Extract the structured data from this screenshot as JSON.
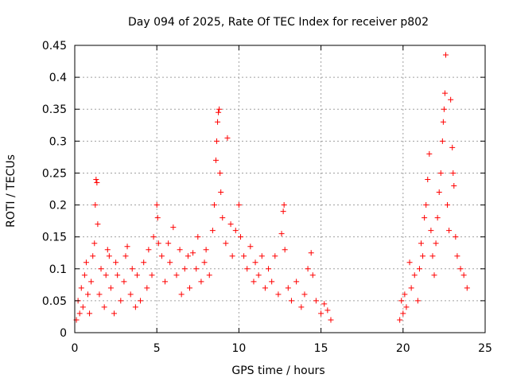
{
  "chart_data": {
    "type": "scatter",
    "title": "Day 094 of 2025, Rate Of TEC Index for receiver p802",
    "xlabel": "GPS time / hours",
    "ylabel": "ROTI / TECUs",
    "xlim": [
      0,
      25
    ],
    "ylim": [
      0,
      0.45
    ],
    "xticks": [
      0,
      5,
      10,
      15,
      20,
      25
    ],
    "xtick_labels": [
      "0",
      "5",
      "10",
      "15",
      "20",
      "25"
    ],
    "yticks": [
      0,
      0.05,
      0.1,
      0.15,
      0.2,
      0.25,
      0.3,
      0.35,
      0.4,
      0.45
    ],
    "ytick_labels": [
      "0",
      "0.05",
      "0.1",
      "0.15",
      "0.2",
      "0.25",
      "0.3",
      "0.35",
      "0.4",
      "0.45"
    ],
    "grid": true,
    "marker": "+",
    "color": "#ff0000",
    "data_gap_hours": [
      15.8,
      19.7
    ],
    "series": [
      {
        "name": "ROTI",
        "points": [
          [
            0.1,
            0.02
          ],
          [
            0.2,
            0.05
          ],
          [
            0.3,
            0.03
          ],
          [
            0.4,
            0.07
          ],
          [
            0.5,
            0.04
          ],
          [
            0.6,
            0.09
          ],
          [
            0.7,
            0.11
          ],
          [
            0.8,
            0.06
          ],
          [
            0.9,
            0.03
          ],
          [
            1.0,
            0.08
          ],
          [
            1.1,
            0.12
          ],
          [
            1.2,
            0.14
          ],
          [
            1.25,
            0.2
          ],
          [
            1.3,
            0.24
          ],
          [
            1.35,
            0.235
          ],
          [
            1.4,
            0.17
          ],
          [
            1.5,
            0.06
          ],
          [
            1.6,
            0.1
          ],
          [
            1.8,
            0.04
          ],
          [
            1.9,
            0.09
          ],
          [
            2.0,
            0.13
          ],
          [
            2.1,
            0.12
          ],
          [
            2.2,
            0.07
          ],
          [
            2.4,
            0.03
          ],
          [
            2.5,
            0.11
          ],
          [
            2.6,
            0.09
          ],
          [
            2.8,
            0.05
          ],
          [
            3.0,
            0.08
          ],
          [
            3.1,
            0.12
          ],
          [
            3.2,
            0.135
          ],
          [
            3.4,
            0.06
          ],
          [
            3.5,
            0.1
          ],
          [
            3.7,
            0.04
          ],
          [
            3.8,
            0.09
          ],
          [
            4.0,
            0.05
          ],
          [
            4.2,
            0.11
          ],
          [
            4.4,
            0.07
          ],
          [
            4.5,
            0.13
          ],
          [
            4.7,
            0.09
          ],
          [
            4.8,
            0.15
          ],
          [
            5.0,
            0.2
          ],
          [
            5.05,
            0.18
          ],
          [
            5.1,
            0.14
          ],
          [
            5.3,
            0.12
          ],
          [
            5.5,
            0.08
          ],
          [
            5.7,
            0.14
          ],
          [
            5.8,
            0.11
          ],
          [
            6.0,
            0.165
          ],
          [
            6.2,
            0.09
          ],
          [
            6.4,
            0.13
          ],
          [
            6.5,
            0.06
          ],
          [
            6.7,
            0.1
          ],
          [
            6.9,
            0.12
          ],
          [
            7.0,
            0.07
          ],
          [
            7.2,
            0.125
          ],
          [
            7.4,
            0.1
          ],
          [
            7.5,
            0.15
          ],
          [
            7.7,
            0.08
          ],
          [
            7.9,
            0.11
          ],
          [
            8.0,
            0.13
          ],
          [
            8.2,
            0.09
          ],
          [
            8.4,
            0.16
          ],
          [
            8.5,
            0.2
          ],
          [
            8.6,
            0.27
          ],
          [
            8.65,
            0.3
          ],
          [
            8.7,
            0.33
          ],
          [
            8.75,
            0.345
          ],
          [
            8.8,
            0.35
          ],
          [
            8.85,
            0.25
          ],
          [
            8.9,
            0.22
          ],
          [
            9.0,
            0.18
          ],
          [
            9.2,
            0.14
          ],
          [
            9.3,
            0.305
          ],
          [
            9.5,
            0.17
          ],
          [
            9.6,
            0.12
          ],
          [
            9.8,
            0.16
          ],
          [
            10.0,
            0.2
          ],
          [
            10.1,
            0.15
          ],
          [
            10.3,
            0.12
          ],
          [
            10.5,
            0.1
          ],
          [
            10.7,
            0.135
          ],
          [
            10.9,
            0.08
          ],
          [
            11.0,
            0.11
          ],
          [
            11.2,
            0.09
          ],
          [
            11.4,
            0.12
          ],
          [
            11.6,
            0.07
          ],
          [
            11.8,
            0.1
          ],
          [
            12.0,
            0.08
          ],
          [
            12.2,
            0.12
          ],
          [
            12.4,
            0.06
          ],
          [
            12.6,
            0.155
          ],
          [
            12.7,
            0.19
          ],
          [
            12.75,
            0.2
          ],
          [
            12.8,
            0.13
          ],
          [
            13.0,
            0.07
          ],
          [
            13.2,
            0.05
          ],
          [
            13.5,
            0.08
          ],
          [
            13.8,
            0.04
          ],
          [
            14.0,
            0.06
          ],
          [
            14.2,
            0.1
          ],
          [
            14.4,
            0.125
          ],
          [
            14.5,
            0.09
          ],
          [
            14.7,
            0.05
          ],
          [
            15.0,
            0.03
          ],
          [
            15.2,
            0.045
          ],
          [
            15.4,
            0.035
          ],
          [
            15.6,
            0.02
          ],
          [
            19.8,
            0.02
          ],
          [
            19.9,
            0.05
          ],
          [
            20.0,
            0.03
          ],
          [
            20.1,
            0.06
          ],
          [
            20.2,
            0.04
          ],
          [
            20.4,
            0.11
          ],
          [
            20.5,
            0.07
          ],
          [
            20.7,
            0.09
          ],
          [
            20.9,
            0.05
          ],
          [
            21.0,
            0.1
          ],
          [
            21.1,
            0.14
          ],
          [
            21.2,
            0.12
          ],
          [
            21.3,
            0.18
          ],
          [
            21.4,
            0.2
          ],
          [
            21.5,
            0.24
          ],
          [
            21.6,
            0.28
          ],
          [
            21.7,
            0.16
          ],
          [
            21.8,
            0.12
          ],
          [
            21.9,
            0.09
          ],
          [
            22.0,
            0.14
          ],
          [
            22.1,
            0.18
          ],
          [
            22.2,
            0.22
          ],
          [
            22.3,
            0.25
          ],
          [
            22.4,
            0.3
          ],
          [
            22.45,
            0.33
          ],
          [
            22.5,
            0.35
          ],
          [
            22.55,
            0.375
          ],
          [
            22.6,
            0.435
          ],
          [
            22.7,
            0.2
          ],
          [
            22.8,
            0.16
          ],
          [
            22.9,
            0.365
          ],
          [
            23.0,
            0.29
          ],
          [
            23.05,
            0.25
          ],
          [
            23.1,
            0.23
          ],
          [
            23.2,
            0.15
          ],
          [
            23.3,
            0.12
          ],
          [
            23.5,
            0.1
          ],
          [
            23.7,
            0.09
          ],
          [
            23.9,
            0.07
          ]
        ]
      }
    ]
  }
}
